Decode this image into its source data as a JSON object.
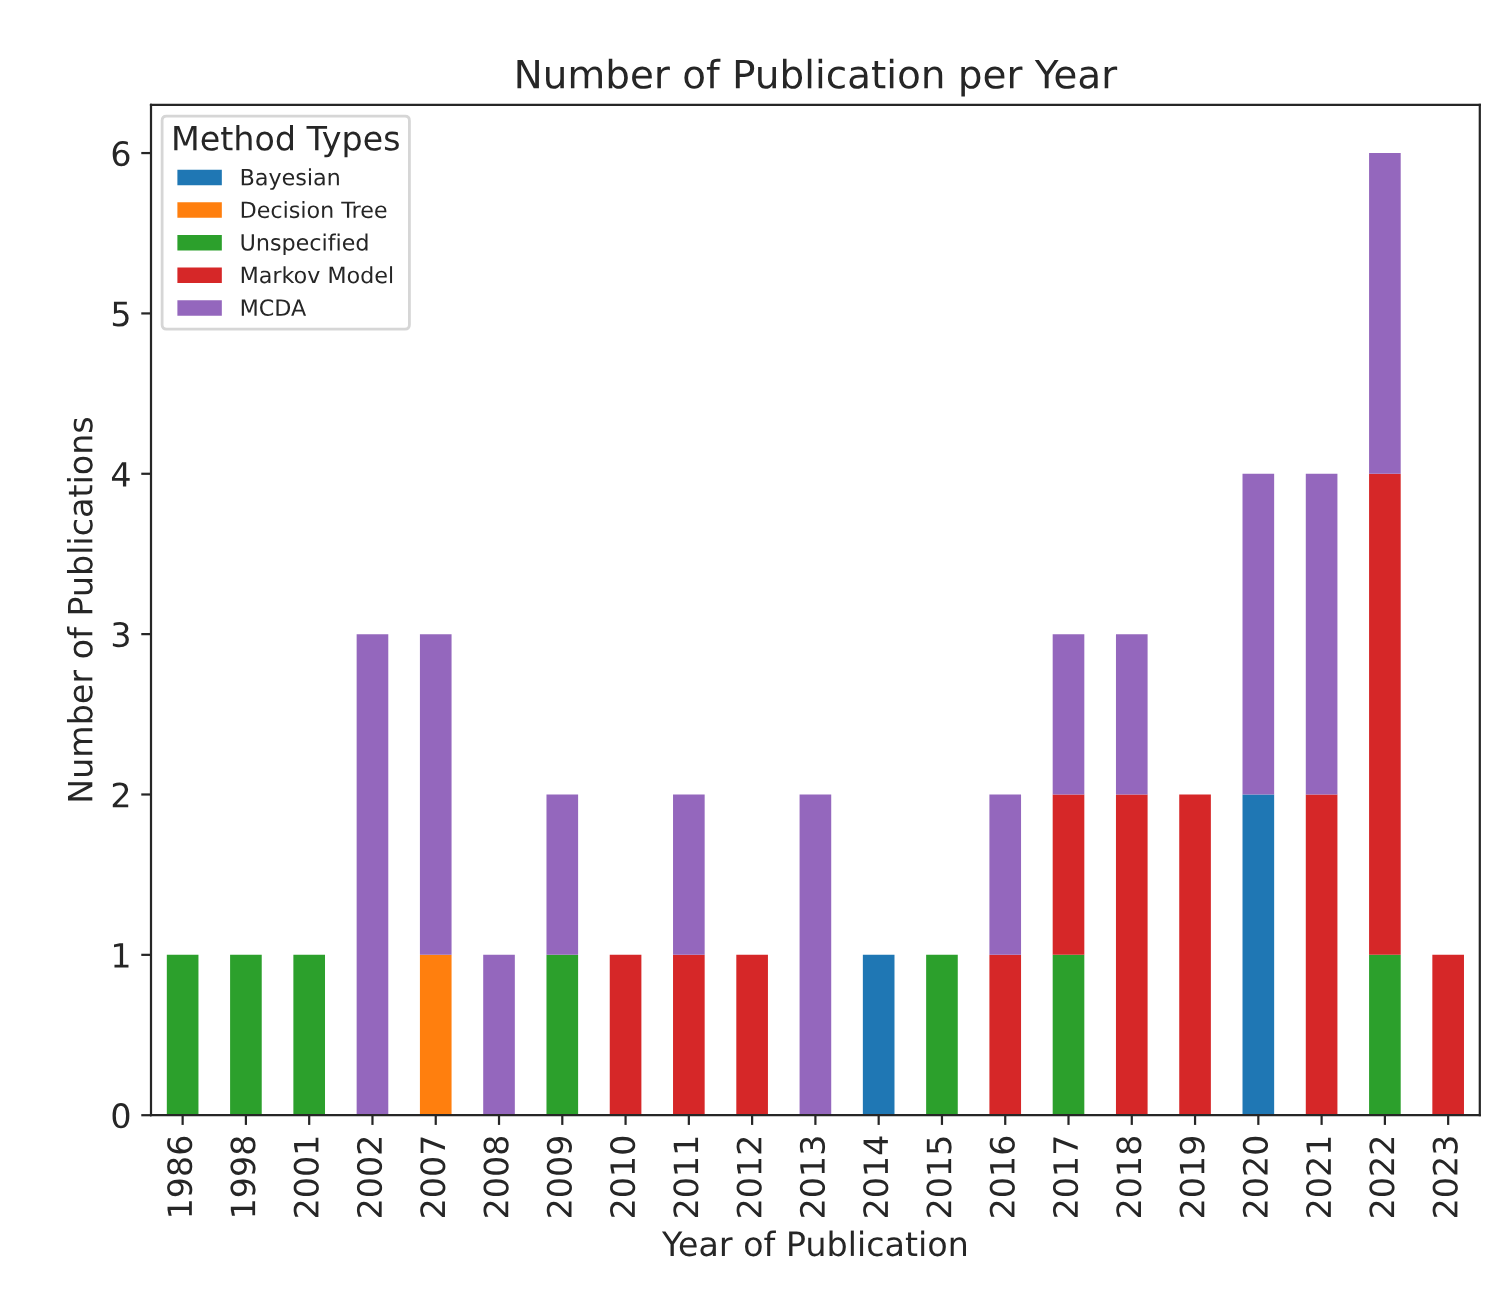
{
  "chart_data": {
    "type": "bar",
    "title": "Number of Publication per Year",
    "xlabel": "Year of Publication",
    "ylabel": "Number of Publications",
    "legend_title": "Method Types",
    "categories": [
      "1986",
      "1998",
      "2001",
      "2002",
      "2007",
      "2008",
      "2009",
      "2010",
      "2011",
      "2012",
      "2013",
      "2014",
      "2015",
      "2016",
      "2017",
      "2018",
      "2019",
      "2020",
      "2021",
      "2022",
      "2023"
    ],
    "stacked": true,
    "series": [
      {
        "name": "Bayesian",
        "color": "#1f77b4",
        "values": [
          0,
          0,
          0,
          0,
          0,
          0,
          0,
          0,
          0,
          0,
          0,
          1,
          0,
          0,
          0,
          0,
          0,
          2,
          0,
          0,
          0
        ]
      },
      {
        "name": "Decision Tree",
        "color": "#ff7f0e",
        "values": [
          0,
          0,
          0,
          0,
          1,
          0,
          0,
          0,
          0,
          0,
          0,
          0,
          0,
          0,
          0,
          0,
          0,
          0,
          0,
          0,
          0
        ]
      },
      {
        "name": "Unspecified",
        "color": "#2ca02c",
        "values": [
          1,
          1,
          1,
          0,
          0,
          0,
          1,
          0,
          0,
          0,
          0,
          0,
          1,
          0,
          1,
          0,
          0,
          0,
          0,
          1,
          0
        ]
      },
      {
        "name": "Markov Model",
        "color": "#d62728",
        "values": [
          0,
          0,
          0,
          0,
          0,
          0,
          0,
          1,
          1,
          1,
          0,
          0,
          0,
          1,
          1,
          2,
          2,
          0,
          2,
          3,
          1
        ]
      },
      {
        "name": "MCDA",
        "color": "#9467bd",
        "values": [
          0,
          0,
          0,
          3,
          2,
          1,
          1,
          0,
          1,
          0,
          2,
          0,
          0,
          1,
          1,
          1,
          0,
          2,
          2,
          2,
          0
        ]
      }
    ],
    "ylim": [
      0,
      6.3
    ],
    "yticks": [
      0,
      1,
      2,
      3,
      4,
      5,
      6
    ],
    "grid": false,
    "legend": "top left"
  }
}
